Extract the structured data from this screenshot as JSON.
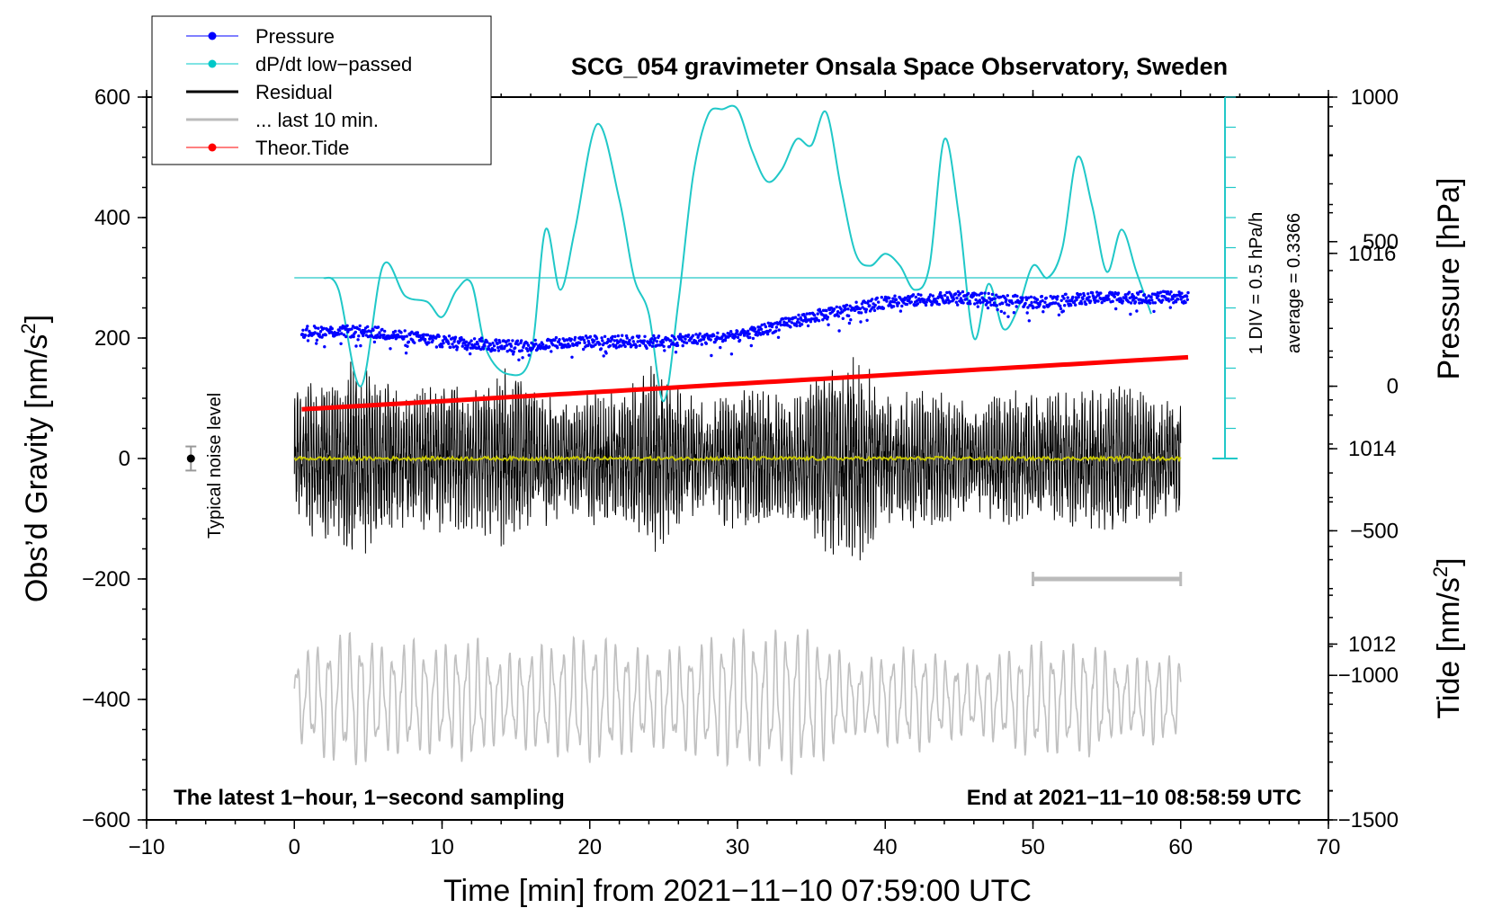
{
  "chart_data": {
    "type": "line",
    "title": "SCG_054 gravimeter Onsala Space Observatory, Sweden",
    "xlabel": "Time [min] from 2021−11−10 07:59:00 UTC",
    "ylabel_left_main": "Obs’d Gravity [nm/s",
    "ylabel_left_sup": "2",
    "ylabel_left_close": "]",
    "ylabel_right_pressure": "Pressure [hPa]",
    "ylabel_right_tide_main": "Tide [nm/s",
    "ylabel_right_tide_sup": "2",
    "ylabel_right_tide_close": "]",
    "xlim": [
      -10,
      70
    ],
    "ylim_gravity": [
      -600,
      600
    ],
    "ylim_tide": [
      -1500,
      1000
    ],
    "ylim_pressure": [
      1010.2,
      1017.6
    ],
    "x_ticks": [
      "−10",
      "0",
      "10",
      "20",
      "30",
      "40",
      "50",
      "60",
      "70"
    ],
    "y_ticks_gravity": [
      "−600",
      "−400",
      "−200",
      "0",
      "200",
      "400",
      "600"
    ],
    "y_ticks_pressure": [
      "1012",
      "1014",
      "1016"
    ],
    "y_ticks_tide": [
      "−1500",
      "−1000",
      "−500",
      "0",
      "500",
      "1000"
    ],
    "legend": [
      {
        "name": "Pressure",
        "color": "#0000ff",
        "style": "line-dot"
      },
      {
        "name": "dP/dt low−passed",
        "color": "#00c8c8",
        "style": "line-dot"
      },
      {
        "name": "Residual",
        "color": "#000000",
        "style": "line"
      },
      {
        "name": "... last 10 min.",
        "color": "#bbbbbb",
        "style": "line"
      },
      {
        "name": "Theor.Tide",
        "color": "#ff0000",
        "style": "line-dot"
      }
    ],
    "series": {
      "pressure_hpa": {
        "x": [
          0.5,
          5,
          10,
          15,
          20,
          25,
          30,
          35,
          40,
          45,
          50,
          55,
          60.5
        ],
        "values": [
          1015.2,
          1015.2,
          1015.1,
          1015.05,
          1015.1,
          1015.1,
          1015.15,
          1015.35,
          1015.5,
          1015.55,
          1015.5,
          1015.55,
          1015.55
        ]
      },
      "dpdt_gravity_units": {
        "x": [
          2,
          3,
          4.5,
          6,
          7.5,
          9,
          10,
          11,
          12,
          13,
          14.5,
          16,
          17,
          18,
          19,
          20.5,
          22,
          23,
          24,
          25,
          26,
          27,
          28,
          29,
          30,
          31,
          32,
          33,
          34,
          35,
          36,
          37,
          38,
          39,
          40,
          41,
          42,
          43,
          44,
          45,
          46,
          47,
          48,
          49,
          50,
          51,
          52,
          53,
          54,
          55,
          56,
          57,
          58
        ],
        "values": [
          300,
          280,
          120,
          320,
          270,
          260,
          235,
          280,
          290,
          180,
          140,
          170,
          380,
          280,
          380,
          555,
          430,
          300,
          240,
          95,
          260,
          470,
          570,
          580,
          580,
          510,
          460,
          480,
          530,
          520,
          575,
          450,
          340,
          320,
          340,
          320,
          280,
          320,
          530,
          400,
          200,
          290,
          215,
          250,
          320,
          300,
          350,
          500,
          420,
          310,
          380,
          310,
          240
        ]
      },
      "residual_envelope": {
        "x": [
          0,
          2,
          4,
          6,
          8,
          10,
          12,
          14,
          16,
          18,
          20,
          22,
          24,
          26,
          28,
          30,
          32,
          34,
          36,
          38,
          40,
          42,
          44,
          46,
          48,
          50,
          52,
          54,
          56,
          58,
          60
        ],
        "amplitude": [
          120,
          140,
          170,
          140,
          110,
          140,
          120,
          160,
          130,
          100,
          120,
          110,
          170,
          120,
          90,
          140,
          120,
          110,
          160,
          190,
          110,
          120,
          120,
          90,
          120,
          110,
          120,
          120,
          130,
          110,
          100
        ]
      },
      "last10min_gravity_units": {
        "x": [
          0,
          2,
          4,
          6,
          8,
          10,
          12,
          14,
          16,
          18,
          20,
          22,
          24,
          26,
          28,
          30,
          32,
          34,
          36,
          38,
          40,
          42,
          44,
          46,
          48,
          50,
          52,
          54,
          56,
          58,
          60
        ],
        "amplitude": [
          70,
          100,
          120,
          90,
          100,
          90,
          110,
          70,
          90,
          100,
          110,
          100,
          80,
          90,
          100,
          120,
          110,
          130,
          100,
          60,
          80,
          90,
          70,
          60,
          80,
          100,
          90,
          100,
          60,
          80,
          70
        ],
        "center": -400
      },
      "theor_tide_nm_s2": {
        "x": [
          0.5,
          60.5
        ],
        "values": [
          -80,
          100
        ]
      }
    },
    "typical_noise_level": {
      "label": "Typical noise level",
      "x": -7,
      "value": 0,
      "error": 20
    },
    "ten_min_scale_bar": {
      "x_start": 50,
      "x_end": 60,
      "y": -200
    },
    "pressure_scale": {
      "div_label": "1 DIV = 0.5 hPa/h",
      "average_label": "average = 0.3366",
      "x": 63,
      "y_top": 600,
      "y_bottom": 0,
      "zero_line_y": 300
    }
  },
  "footer_left": "The latest 1−hour, 1−second sampling",
  "footer_right": "End at 2021−11−10 08:58:59 UTC"
}
